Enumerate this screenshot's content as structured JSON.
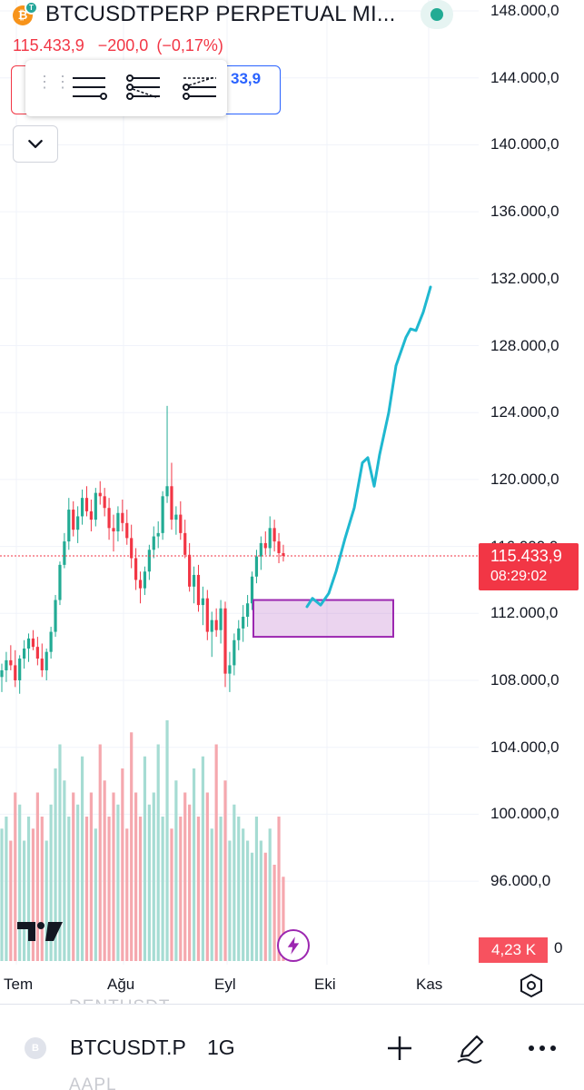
{
  "header": {
    "symbol_title": "BTCUSDTPERP PERPETUAL MI...",
    "coin_icon": "bitcoin-icon",
    "last_price": "115.433,9",
    "change": "−200,0",
    "change_pct": "(−0,17%)",
    "status_color": "#22ab94"
  },
  "trade_panel": {
    "buy_price": "33,9",
    "buy_price_suffix": "..."
  },
  "drawing_toolbar": {
    "tools": [
      "parallel-lines-tool-icon",
      "crossed-lines-tool-icon",
      "rising-channel-tool-icon"
    ]
  },
  "price_scale": {
    "labels": [
      "148.000,0",
      "144.000,0",
      "140.000,0",
      "136.000,0",
      "132.000,0",
      "128.000,0",
      "124.000,0",
      "120.000,0",
      "116.000,0",
      "112.000,0",
      "108.000,0",
      "104.000,0",
      "100.000,0",
      "96.000,0",
      "0"
    ],
    "current_price": "115.433,9",
    "countdown": "08:29:02",
    "volume_value": "4,23 K"
  },
  "time_scale": {
    "labels": [
      "Tem",
      "Ağu",
      "Eyl",
      "Eki",
      "Kas"
    ]
  },
  "chart_data": {
    "type": "candlestick",
    "interval": "1G",
    "y_range": [
      94000,
      150000
    ],
    "up_color": "#22ab94",
    "down_color": "#f23645",
    "last_price": 115433.9,
    "annotations": {
      "box": {
        "price_top": 112800,
        "price_bottom": 110600,
        "color": "#9c27b0"
      },
      "projection_path_prices": [
        112400,
        112900,
        112500,
        113200,
        114500,
        116500,
        118300,
        121000,
        121300,
        119600,
        121500,
        124000,
        126800,
        128500,
        129000,
        128900,
        130000,
        131500
      ],
      "projection_color": "#1fb8d0"
    },
    "candles_ohlc": [
      [
        108200,
        109000,
        107300,
        108600
      ],
      [
        108600,
        109700,
        107900,
        109200
      ],
      [
        109200,
        110100,
        108600,
        108900
      ],
      [
        108900,
        109800,
        107600,
        108000
      ],
      [
        108000,
        109500,
        107200,
        109300
      ],
      [
        109300,
        110400,
        108700,
        109900
      ],
      [
        109900,
        110800,
        109100,
        110500
      ],
      [
        110500,
        111000,
        109800,
        110000
      ],
      [
        110000,
        110600,
        108900,
        109300
      ],
      [
        109300,
        110200,
        108200,
        108600
      ],
      [
        108600,
        109900,
        108000,
        109700
      ],
      [
        109700,
        111200,
        109300,
        110900
      ],
      [
        110900,
        113100,
        110600,
        112800
      ],
      [
        112800,
        115100,
        112500,
        114900
      ],
      [
        114900,
        116800,
        114700,
        116300
      ],
      [
        116300,
        118900,
        115800,
        118200
      ],
      [
        118200,
        118700,
        116600,
        117000
      ],
      [
        117000,
        118400,
        116200,
        117800
      ],
      [
        117800,
        119400,
        117300,
        118900
      ],
      [
        118900,
        119600,
        117800,
        118100
      ],
      [
        118100,
        118800,
        116900,
        117600
      ],
      [
        117600,
        119500,
        117200,
        119200
      ],
      [
        119200,
        119900,
        118500,
        119000
      ],
      [
        119000,
        119500,
        117800,
        118300
      ],
      [
        118300,
        118900,
        116400,
        117100
      ],
      [
        117100,
        117900,
        115700,
        116900
      ],
      [
        116900,
        118400,
        116300,
        118000
      ],
      [
        118000,
        118800,
        116900,
        117400
      ],
      [
        117400,
        118200,
        116100,
        116500
      ],
      [
        116500,
        117300,
        114700,
        115300
      ],
      [
        115300,
        115900,
        113400,
        114000
      ],
      [
        114000,
        114500,
        112600,
        113500
      ],
      [
        113500,
        114800,
        113100,
        114500
      ],
      [
        114500,
        116100,
        114000,
        115800
      ],
      [
        115800,
        117200,
        115300,
        116600
      ],
      [
        116600,
        117500,
        115900,
        116800
      ],
      [
        116800,
        119300,
        116400,
        119000
      ],
      [
        119000,
        124400,
        118600,
        119600
      ],
      [
        119600,
        121000,
        117000,
        117600
      ],
      [
        117600,
        118400,
        116700,
        117900
      ],
      [
        117900,
        118700,
        116400,
        116800
      ],
      [
        116800,
        117600,
        115300,
        115500
      ],
      [
        115500,
        116200,
        113300,
        113600
      ],
      [
        113600,
        114800,
        112600,
        114300
      ],
      [
        114300,
        114900,
        112100,
        112500
      ],
      [
        112500,
        113600,
        111300,
        112900
      ],
      [
        112900,
        113400,
        110400,
        110900
      ],
      [
        110900,
        112100,
        109400,
        111600
      ],
      [
        111600,
        112300,
        110600,
        111000
      ],
      [
        111000,
        112800,
        110200,
        112300
      ],
      [
        112300,
        112700,
        107600,
        108400
      ],
      [
        108400,
        109700,
        107300,
        108900
      ],
      [
        108900,
        110800,
        108300,
        110400
      ],
      [
        110400,
        111600,
        109800,
        111100
      ],
      [
        111100,
        112500,
        110300,
        111800
      ],
      [
        111800,
        113100,
        111200,
        112600
      ],
      [
        112600,
        114500,
        112200,
        114200
      ],
      [
        114200,
        115800,
        113800,
        115400
      ],
      [
        115400,
        116600,
        114600,
        116200
      ],
      [
        116200,
        116900,
        115500,
        115900
      ],
      [
        115900,
        117800,
        115400,
        117100
      ],
      [
        117100,
        117600,
        115700,
        116300
      ],
      [
        116300,
        116800,
        115000,
        115600
      ],
      [
        115600,
        116100,
        115100,
        115434
      ]
    ],
    "volume": [
      0.55,
      0.6,
      0.5,
      0.7,
      0.65,
      0.5,
      0.6,
      0.55,
      0.7,
      0.6,
      0.5,
      0.65,
      0.8,
      0.9,
      0.75,
      0.6,
      0.7,
      0.65,
      0.85,
      0.6,
      0.7,
      0.55,
      0.9,
      0.75,
      0.6,
      0.7,
      0.65,
      0.8,
      0.55,
      0.95,
      0.7,
      0.6,
      0.85,
      0.65,
      0.7,
      0.9,
      0.6,
      1.0,
      0.55,
      0.75,
      0.6,
      0.7,
      0.65,
      0.8,
      0.6,
      0.85,
      0.7,
      0.55,
      0.9,
      0.6,
      0.75,
      0.5,
      0.65,
      0.6,
      0.55,
      0.5,
      0.45,
      0.6,
      0.5,
      0.45,
      0.55,
      0.4,
      0.6,
      0.35
    ]
  },
  "bottom_bar": {
    "ghost_above": "DENTUSDT.",
    "symbol": "BTCUSDT.P",
    "interval": "1G",
    "ghost_below": "AAPL",
    "add_icon": "plus-icon",
    "draw_icon": "pen-icon",
    "more_icon": "more-dots-icon"
  }
}
